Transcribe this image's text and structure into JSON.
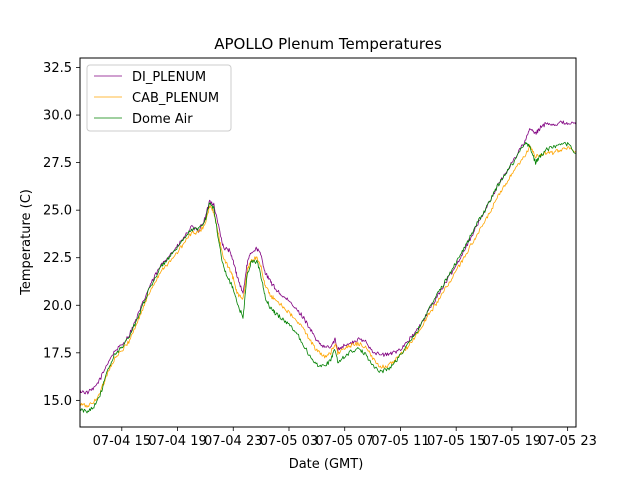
{
  "chart_data": {
    "type": "line",
    "title": "APOLLO Plenum Temperatures",
    "xlabel": "Date (GMT)",
    "ylabel": "Temperature (C)",
    "x_unit": "hours since 07-04 12:00 GMT",
    "xlim": [
      0,
      35.6
    ],
    "ylim": [
      13.6,
      33.0
    ],
    "grid": false,
    "legend_position": "top-left",
    "x_ticks": [
      {
        "value": 3,
        "label": "07-04 15"
      },
      {
        "value": 7,
        "label": "07-04 19"
      },
      {
        "value": 11,
        "label": "07-04 23"
      },
      {
        "value": 15,
        "label": "07-05 03"
      },
      {
        "value": 19,
        "label": "07-05 07"
      },
      {
        "value": 23,
        "label": "07-05 11"
      },
      {
        "value": 27,
        "label": "07-05 15"
      },
      {
        "value": 31,
        "label": "07-05 19"
      },
      {
        "value": 35,
        "label": "07-05 23"
      }
    ],
    "y_ticks": [
      {
        "value": 15.0,
        "label": "15.0"
      },
      {
        "value": 17.5,
        "label": "17.5"
      },
      {
        "value": 20.0,
        "label": "20.0"
      },
      {
        "value": 22.5,
        "label": "22.5"
      },
      {
        "value": 25.0,
        "label": "25.0"
      },
      {
        "value": 27.5,
        "label": "27.5"
      },
      {
        "value": 30.0,
        "label": "30.0"
      },
      {
        "value": 32.5,
        "label": "32.5"
      }
    ],
    "series": [
      {
        "name": "DI_PLENUM",
        "color": "#800080",
        "points": [
          [
            0,
            15.5
          ],
          [
            0.5,
            15.4
          ],
          [
            1,
            15.6
          ],
          [
            1.5,
            16.2
          ],
          [
            2,
            17.0
          ],
          [
            2.5,
            17.6
          ],
          [
            3,
            17.9
          ],
          [
            3.5,
            18.4
          ],
          [
            4,
            19.2
          ],
          [
            4.5,
            20.1
          ],
          [
            5,
            21.0
          ],
          [
            5.5,
            21.7
          ],
          [
            6,
            22.3
          ],
          [
            6.5,
            22.7
          ],
          [
            7,
            23.1
          ],
          [
            7.5,
            23.6
          ],
          [
            8,
            24.1
          ],
          [
            8.5,
            23.9
          ],
          [
            9,
            24.6
          ],
          [
            9.3,
            25.5
          ],
          [
            9.6,
            25.3
          ],
          [
            10,
            24.0
          ],
          [
            10.3,
            23.0
          ],
          [
            10.7,
            22.9
          ],
          [
            11,
            22.3
          ],
          [
            11.3,
            21.5
          ],
          [
            11.7,
            20.6
          ],
          [
            12,
            22.2
          ],
          [
            12.3,
            22.8
          ],
          [
            12.7,
            23.0
          ],
          [
            13,
            22.6
          ],
          [
            13.3,
            21.7
          ],
          [
            13.7,
            21.2
          ],
          [
            14,
            20.9
          ],
          [
            14.5,
            20.5
          ],
          [
            15,
            20.2
          ],
          [
            15.5,
            19.8
          ],
          [
            16,
            19.4
          ],
          [
            16.5,
            18.8
          ],
          [
            17,
            18.1
          ],
          [
            17.5,
            17.8
          ],
          [
            18,
            17.8
          ],
          [
            18.3,
            18.2
          ],
          [
            18.5,
            17.7
          ],
          [
            19,
            17.9
          ],
          [
            19.5,
            18.0
          ],
          [
            20,
            18.2
          ],
          [
            20.5,
            18.1
          ],
          [
            21,
            17.6
          ],
          [
            21.5,
            17.4
          ],
          [
            22,
            17.4
          ],
          [
            22.5,
            17.5
          ],
          [
            23,
            17.7
          ],
          [
            23.5,
            18.1
          ],
          [
            24,
            18.5
          ],
          [
            24.5,
            19.0
          ],
          [
            25,
            19.7
          ],
          [
            25.5,
            20.3
          ],
          [
            26,
            20.9
          ],
          [
            26.5,
            21.5
          ],
          [
            27,
            22.1
          ],
          [
            27.5,
            22.8
          ],
          [
            28,
            23.5
          ],
          [
            28.5,
            24.2
          ],
          [
            29,
            24.9
          ],
          [
            29.5,
            25.6
          ],
          [
            30,
            26.3
          ],
          [
            30.5,
            26.9
          ],
          [
            31,
            27.5
          ],
          [
            31.5,
            28.1
          ],
          [
            32,
            28.7
          ],
          [
            32.3,
            29.3
          ],
          [
            32.7,
            29.0
          ],
          [
            33,
            29.3
          ],
          [
            33.5,
            29.6
          ],
          [
            34,
            29.5
          ],
          [
            34.5,
            29.6
          ],
          [
            35,
            29.6
          ],
          [
            35.6,
            29.5
          ]
        ]
      },
      {
        "name": "CAB_PLENUM",
        "color": "#ffa500",
        "points": [
          [
            0,
            14.8
          ],
          [
            0.5,
            14.7
          ],
          [
            1,
            14.9
          ],
          [
            1.5,
            15.5
          ],
          [
            2,
            16.5
          ],
          [
            2.5,
            17.2
          ],
          [
            3,
            17.6
          ],
          [
            3.5,
            18.1
          ],
          [
            4,
            18.9
          ],
          [
            4.5,
            19.8
          ],
          [
            5,
            20.7
          ],
          [
            5.5,
            21.4
          ],
          [
            6,
            22.0
          ],
          [
            6.5,
            22.3
          ],
          [
            7,
            22.8
          ],
          [
            7.5,
            23.3
          ],
          [
            8,
            23.8
          ],
          [
            8.5,
            23.8
          ],
          [
            9,
            24.3
          ],
          [
            9.3,
            25.2
          ],
          [
            9.6,
            24.9
          ],
          [
            10,
            23.5
          ],
          [
            10.3,
            22.4
          ],
          [
            10.7,
            22.0
          ],
          [
            11,
            21.4
          ],
          [
            11.3,
            20.6
          ],
          [
            11.7,
            20.3
          ],
          [
            12,
            21.8
          ],
          [
            12.3,
            22.4
          ],
          [
            12.7,
            22.5
          ],
          [
            13,
            22.0
          ],
          [
            13.3,
            21.0
          ],
          [
            13.7,
            20.5
          ],
          [
            14,
            20.3
          ],
          [
            14.5,
            20.0
          ],
          [
            15,
            19.6
          ],
          [
            15.5,
            19.2
          ],
          [
            16,
            18.8
          ],
          [
            16.5,
            18.2
          ],
          [
            17,
            17.6
          ],
          [
            17.5,
            17.3
          ],
          [
            18,
            17.5
          ],
          [
            18.3,
            18.0
          ],
          [
            18.5,
            17.5
          ],
          [
            19,
            17.7
          ],
          [
            19.5,
            17.9
          ],
          [
            20,
            18.0
          ],
          [
            20.5,
            17.8
          ],
          [
            21,
            17.2
          ],
          [
            21.5,
            16.8
          ],
          [
            22,
            16.8
          ],
          [
            22.5,
            17.0
          ],
          [
            23,
            17.4
          ],
          [
            23.5,
            17.8
          ],
          [
            24,
            18.3
          ],
          [
            24.5,
            18.8
          ],
          [
            25,
            19.5
          ],
          [
            25.5,
            20.0
          ],
          [
            26,
            20.6
          ],
          [
            26.5,
            21.2
          ],
          [
            27,
            21.8
          ],
          [
            27.5,
            22.4
          ],
          [
            28,
            23.1
          ],
          [
            28.5,
            23.7
          ],
          [
            29,
            24.3
          ],
          [
            29.5,
            25.0
          ],
          [
            30,
            25.7
          ],
          [
            30.5,
            26.3
          ],
          [
            31,
            26.9
          ],
          [
            31.5,
            27.4
          ],
          [
            32,
            27.9
          ],
          [
            32.3,
            28.4
          ],
          [
            32.7,
            27.8
          ],
          [
            33,
            27.9
          ],
          [
            33.5,
            28.0
          ],
          [
            34,
            28.0
          ],
          [
            34.5,
            28.2
          ],
          [
            35,
            28.3
          ],
          [
            35.6,
            28.1
          ]
        ]
      },
      {
        "name": "Dome Air",
        "color": "#008000",
        "points": [
          [
            0,
            14.5
          ],
          [
            0.5,
            14.4
          ],
          [
            1,
            14.7
          ],
          [
            1.5,
            15.4
          ],
          [
            2,
            16.6
          ],
          [
            2.5,
            17.4
          ],
          [
            3,
            17.8
          ],
          [
            3.5,
            18.3
          ],
          [
            4,
            19.1
          ],
          [
            4.5,
            20.0
          ],
          [
            5,
            20.9
          ],
          [
            5.5,
            21.6
          ],
          [
            6,
            22.2
          ],
          [
            6.5,
            22.6
          ],
          [
            7,
            23.0
          ],
          [
            7.5,
            23.5
          ],
          [
            8,
            24.0
          ],
          [
            8.5,
            24.0
          ],
          [
            9,
            24.5
          ],
          [
            9.3,
            25.4
          ],
          [
            9.6,
            25.1
          ],
          [
            10,
            23.2
          ],
          [
            10.3,
            22.0
          ],
          [
            10.7,
            21.3
          ],
          [
            11,
            20.9
          ],
          [
            11.3,
            20.0
          ],
          [
            11.7,
            19.4
          ],
          [
            12,
            21.6
          ],
          [
            12.3,
            22.3
          ],
          [
            12.7,
            22.3
          ],
          [
            13,
            21.5
          ],
          [
            13.3,
            20.4
          ],
          [
            13.7,
            19.8
          ],
          [
            14,
            19.6
          ],
          [
            14.5,
            19.3
          ],
          [
            15,
            19.0
          ],
          [
            15.5,
            18.6
          ],
          [
            16,
            18.0
          ],
          [
            16.5,
            17.3
          ],
          [
            17,
            16.9
          ],
          [
            17.5,
            16.8
          ],
          [
            18,
            17.1
          ],
          [
            18.3,
            17.7
          ],
          [
            18.5,
            17.0
          ],
          [
            19,
            17.3
          ],
          [
            19.5,
            17.6
          ],
          [
            20,
            17.7
          ],
          [
            20.5,
            17.4
          ],
          [
            21,
            16.9
          ],
          [
            21.5,
            16.5
          ],
          [
            22,
            16.6
          ],
          [
            22.5,
            16.9
          ],
          [
            23,
            17.4
          ],
          [
            23.5,
            17.9
          ],
          [
            24,
            18.4
          ],
          [
            24.5,
            19.0
          ],
          [
            25,
            19.8
          ],
          [
            25.5,
            20.4
          ],
          [
            26,
            21.0
          ],
          [
            26.5,
            21.6
          ],
          [
            27,
            22.3
          ],
          [
            27.5,
            22.9
          ],
          [
            28,
            23.6
          ],
          [
            28.5,
            24.3
          ],
          [
            29,
            24.9
          ],
          [
            29.5,
            25.6
          ],
          [
            30,
            26.3
          ],
          [
            30.5,
            26.9
          ],
          [
            31,
            27.4
          ],
          [
            31.5,
            28.0
          ],
          [
            32,
            28.6
          ],
          [
            32.3,
            28.3
          ],
          [
            32.7,
            27.5
          ],
          [
            33,
            27.8
          ],
          [
            33.5,
            28.2
          ],
          [
            34,
            28.3
          ],
          [
            34.5,
            28.4
          ],
          [
            35,
            28.5
          ],
          [
            35.6,
            28.0
          ]
        ]
      }
    ]
  }
}
